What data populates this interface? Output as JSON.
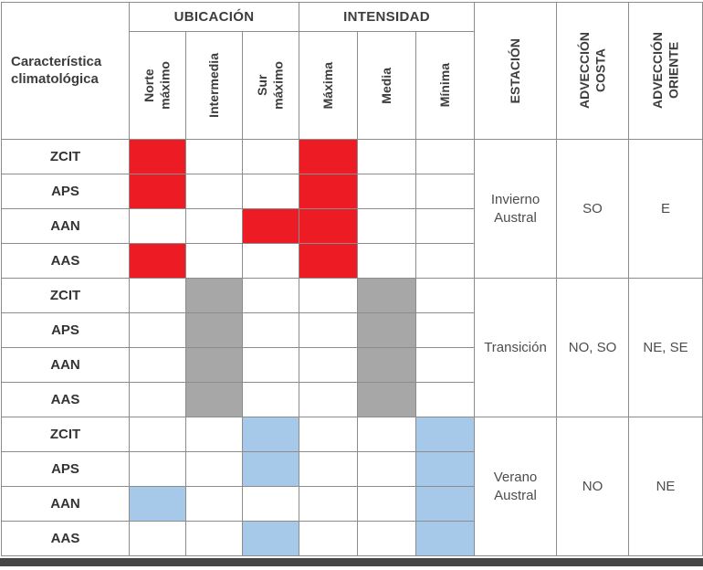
{
  "colors": {
    "red": "#ed1c24",
    "gray": "#a7a7a7",
    "blue": "#a6c9ea",
    "border": "#8c8c8c"
  },
  "header": {
    "corner": "Característica climatológica",
    "ubicacion": "UBICACIÓN",
    "intensidad": "INTENSIDAD",
    "sub": [
      "Norte\nmáximo",
      "Intermedia",
      "Sur\nmáximo",
      "Máxima",
      "Media",
      "Mínima"
    ],
    "estacion": "ESTACIÓN",
    "adveccion_costa": "ADVECCIÓN\nCOSTA",
    "adveccion_oriente": "ADVECCIÓN\nORIENTE"
  },
  "rows": [
    {
      "label": "ZCIT",
      "cells": [
        "red",
        "",
        "",
        "red",
        "",
        ""
      ]
    },
    {
      "label": "APS",
      "cells": [
        "red",
        "",
        "",
        "red",
        "",
        ""
      ]
    },
    {
      "label": "AAN",
      "cells": [
        "",
        "",
        "red",
        "red",
        "",
        ""
      ]
    },
    {
      "label": "AAS",
      "cells": [
        "red",
        "",
        "",
        "red",
        "",
        ""
      ]
    },
    {
      "label": "ZCIT",
      "cells": [
        "",
        "gray",
        "",
        "",
        "gray",
        ""
      ]
    },
    {
      "label": "APS",
      "cells": [
        "",
        "gray",
        "",
        "",
        "gray",
        ""
      ]
    },
    {
      "label": "AAN",
      "cells": [
        "",
        "gray",
        "",
        "",
        "gray",
        ""
      ]
    },
    {
      "label": "AAS",
      "cells": [
        "",
        "gray",
        "",
        "",
        "gray",
        ""
      ]
    },
    {
      "label": "ZCIT",
      "cells": [
        "",
        "",
        "blue",
        "",
        "",
        "blue"
      ]
    },
    {
      "label": "APS",
      "cells": [
        "",
        "",
        "blue",
        "",
        "",
        "blue"
      ]
    },
    {
      "label": "AAN",
      "cells": [
        "blue",
        "",
        "",
        "",
        "",
        "blue"
      ]
    },
    {
      "label": "AAS",
      "cells": [
        "",
        "",
        "blue",
        "",
        "",
        "blue"
      ]
    }
  ],
  "groups": [
    {
      "season": "Invierno Austral",
      "costa": "SO",
      "oriente": "E"
    },
    {
      "season": "Transición",
      "costa": "NO, SO",
      "oriente": "NE, SE"
    },
    {
      "season": "Verano Austral",
      "costa": "NO",
      "oriente": "NE"
    }
  ],
  "chart_data": {
    "type": "table",
    "title": "Características climatológicas por estación",
    "columns": [
      "Característica climatológica",
      "Norte máximo",
      "Intermedia",
      "Sur máximo",
      "Máxima",
      "Media",
      "Mínima",
      "ESTACIÓN",
      "ADVECCIÓN COSTA",
      "ADVECCIÓN ORIENTE"
    ],
    "column_groups": {
      "UBICACIÓN": [
        "Norte máximo",
        "Intermedia",
        "Sur máximo"
      ],
      "INTENSIDAD": [
        "Máxima",
        "Media",
        "Mínima"
      ]
    },
    "color_meaning": {
      "red": "Invierno Austral",
      "gray": "Transición",
      "blue": "Verano Austral"
    },
    "rows": [
      {
        "caracteristica": "ZCIT",
        "estacion": "Invierno Austral",
        "ubicacion": "Norte máximo",
        "intensidad": "Máxima",
        "adveccion_costa": "SO",
        "adveccion_oriente": "E"
      },
      {
        "caracteristica": "APS",
        "estacion": "Invierno Austral",
        "ubicacion": "Norte máximo",
        "intensidad": "Máxima",
        "adveccion_costa": "SO",
        "adveccion_oriente": "E"
      },
      {
        "caracteristica": "AAN",
        "estacion": "Invierno Austral",
        "ubicacion": "Sur máximo",
        "intensidad": "Máxima",
        "adveccion_costa": "SO",
        "adveccion_oriente": "E"
      },
      {
        "caracteristica": "AAS",
        "estacion": "Invierno Austral",
        "ubicacion": "Norte máximo",
        "intensidad": "Máxima",
        "adveccion_costa": "SO",
        "adveccion_oriente": "E"
      },
      {
        "caracteristica": "ZCIT",
        "estacion": "Transición",
        "ubicacion": "Intermedia",
        "intensidad": "Media",
        "adveccion_costa": "NO, SO",
        "adveccion_oriente": "NE, SE"
      },
      {
        "caracteristica": "APS",
        "estacion": "Transición",
        "ubicacion": "Intermedia",
        "intensidad": "Media",
        "adveccion_costa": "NO, SO",
        "adveccion_oriente": "NE, SE"
      },
      {
        "caracteristica": "AAN",
        "estacion": "Transición",
        "ubicacion": "Intermedia",
        "intensidad": "Media",
        "adveccion_costa": "NO, SO",
        "adveccion_oriente": "NE, SE"
      },
      {
        "caracteristica": "AAS",
        "estacion": "Transición",
        "ubicacion": "Intermedia",
        "intensidad": "Media",
        "adveccion_costa": "NO, SO",
        "adveccion_oriente": "NE, SE"
      },
      {
        "caracteristica": "ZCIT",
        "estacion": "Verano Austral",
        "ubicacion": "Sur máximo",
        "intensidad": "Mínima",
        "adveccion_costa": "NO",
        "adveccion_oriente": "NE"
      },
      {
        "caracteristica": "APS",
        "estacion": "Verano Austral",
        "ubicacion": "Sur máximo",
        "intensidad": "Mínima",
        "adveccion_costa": "NO",
        "adveccion_oriente": "NE"
      },
      {
        "caracteristica": "AAN",
        "estacion": "Verano Austral",
        "ubicacion": "Norte máximo",
        "intensidad": "Mínima",
        "adveccion_costa": "NO",
        "adveccion_oriente": "NE"
      },
      {
        "caracteristica": "AAS",
        "estacion": "Verano Austral",
        "ubicacion": "Sur máximo",
        "intensidad": "Mínima",
        "adveccion_costa": "NO",
        "adveccion_oriente": "NE"
      }
    ]
  }
}
